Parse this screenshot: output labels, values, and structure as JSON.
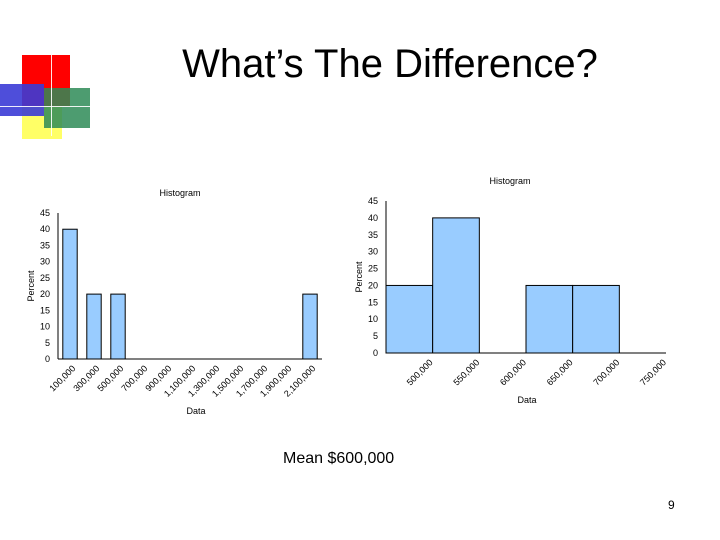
{
  "slide": {
    "title": "What’s The Difference?",
    "mean_text": "Mean $600,000",
    "page_number": "9"
  },
  "decoration": {
    "colors": {
      "red": "#ff0000",
      "green": "#2e8b57",
      "blue": "#3b3bd6",
      "yellow": "#ffff66"
    }
  },
  "chart_data": [
    {
      "type": "bar",
      "title": "Histogram",
      "xlabel": "Data",
      "ylabel": "Percent",
      "categories": [
        "100,000",
        "300,000",
        "500,000",
        "700,000",
        "900,000",
        "1,100,000",
        "1,300,000",
        "1,500,000",
        "1,700,000",
        "1,900,000",
        "2,100,000"
      ],
      "values": [
        40,
        20,
        20,
        0,
        0,
        0,
        0,
        0,
        0,
        0,
        20
      ],
      "yticks": [
        0,
        5,
        10,
        15,
        20,
        25,
        30,
        35,
        40,
        45
      ],
      "ylim": [
        0,
        45
      ],
      "bar_color": "#99ccff",
      "grid": false
    },
    {
      "type": "bar",
      "title": "Histogram",
      "xlabel": "Data",
      "ylabel": "Percent",
      "categories": [
        "500,000",
        "550,000",
        "600,000",
        "650,000",
        "700,000",
        "750,000"
      ],
      "values": [
        20,
        40,
        0,
        20,
        20,
        0
      ],
      "yticks": [
        0,
        5,
        10,
        15,
        20,
        25,
        30,
        35,
        40,
        45
      ],
      "ylim": [
        0,
        45
      ],
      "bar_color": "#99ccff",
      "grid": false
    }
  ]
}
